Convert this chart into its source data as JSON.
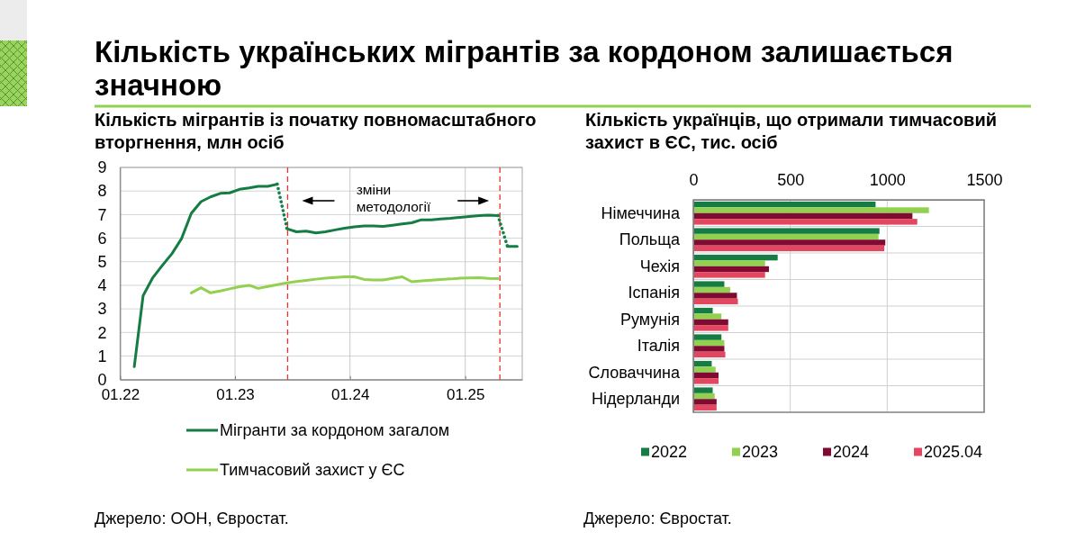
{
  "chart_data": [
    {
      "type": "line",
      "title": "Кількість українських мігрантів за кордоном залишається значною",
      "subtitle": "Кількість мігрантів із початку повномасштабного вторгнення, млн осіб",
      "xlim": [
        "2022-01",
        "2025-07"
      ],
      "xticks": [
        {
          "value": "2022-01",
          "label": "01.22"
        },
        {
          "value": "2023-01",
          "label": "01.23"
        },
        {
          "value": "2024-01",
          "label": "01.24"
        },
        {
          "value": "2025-01",
          "label": "01.25"
        }
      ],
      "ylim": [
        0,
        9
      ],
      "yticks": [
        0,
        1,
        2,
        3,
        4,
        5,
        6,
        7,
        8,
        9
      ],
      "grid": true,
      "legend": "bottom",
      "series": [
        {
          "name": "Мігранти за кордоном загалом",
          "color": "#157d43",
          "x": [
            "2022-02-15",
            "2022-03-15",
            "2022-04-15",
            "2022-05-15",
            "2022-06-15",
            "2022-07-15",
            "2022-08-15",
            "2022-09-15",
            "2022-10-15",
            "2022-11-15",
            "2022-12-15",
            "2023-01-15",
            "2023-02-15",
            "2023-03-15",
            "2023-04-15",
            "2023-05-15",
            "2023-06-01",
            "2023-06-15",
            "2023-07-15",
            "2023-08-15",
            "2023-09-15",
            "2023-10-15",
            "2023-11-15",
            "2023-12-15",
            "2024-01-15",
            "2024-02-15",
            "2024-03-15",
            "2024-04-15",
            "2024-05-15",
            "2024-06-15",
            "2024-07-15",
            "2024-08-15",
            "2024-09-15",
            "2024-10-15",
            "2024-11-15",
            "2024-12-15",
            "2025-01-15",
            "2025-02-15",
            "2025-03-15",
            "2025-04-15",
            "2025-05-01",
            "2025-05-15",
            "2025-06-15"
          ],
          "values": [
            0.55,
            3.56,
            4.33,
            4.84,
            5.35,
            5.98,
            7.05,
            7.55,
            7.75,
            7.9,
            7.92,
            8.07,
            8.13,
            8.2,
            8.2,
            8.29,
            null,
            6.4,
            6.27,
            6.3,
            6.22,
            6.27,
            6.35,
            6.42,
            6.48,
            6.52,
            6.52,
            6.5,
            6.55,
            6.6,
            6.65,
            6.78,
            6.78,
            6.81,
            6.84,
            6.88,
            6.92,
            6.96,
            6.98,
            6.96,
            null,
            5.65,
            5.65
          ]
        },
        {
          "color": "#18804a",
          "line_style": "dotted",
          "x": [
            "2023-05-15",
            "2023-06-15",
            "2024-01-01",
            "2025-04-15",
            "2025-05-15"
          ],
          "values": [
            8.29,
            6.4,
            null,
            6.96,
            5.65
          ]
        },
        {
          "name": "Тимчасовий захист у ЄС",
          "color": "#92d050",
          "x": [
            "2022-08-15",
            "2022-09-15",
            "2022-10-15",
            "2022-11-15",
            "2022-12-15",
            "2023-01-15",
            "2023-02-15",
            "2023-03-15",
            "2023-04-15",
            "2023-05-15",
            "2023-06-15",
            "2023-07-15",
            "2023-08-15",
            "2023-09-15",
            "2023-10-15",
            "2023-11-15",
            "2023-12-15",
            "2024-01-15",
            "2024-02-15",
            "2024-03-15",
            "2024-04-15",
            "2024-05-15",
            "2024-06-15",
            "2024-07-15",
            "2024-08-15",
            "2024-09-15",
            "2024-10-15",
            "2024-11-15",
            "2024-12-15",
            "2025-01-15",
            "2025-02-15",
            "2025-03-15",
            "2025-04-15"
          ],
          "values": [
            3.68,
            3.9,
            3.68,
            3.76,
            3.85,
            3.94,
            4.0,
            3.87,
            3.95,
            4.03,
            4.1,
            4.16,
            4.21,
            4.26,
            4.3,
            4.33,
            4.36,
            4.36,
            4.25,
            4.23,
            4.23,
            4.29,
            4.36,
            4.15,
            4.19,
            4.22,
            4.25,
            4.27,
            4.3,
            4.31,
            4.32,
            4.29,
            4.28
          ]
        }
      ],
      "ref_lines": [
        {
          "axis": "x",
          "value": "2023-06-17",
          "color": "#e8322d",
          "line_style": "dashed"
        },
        {
          "axis": "x",
          "value": "2025-04-21",
          "color": "#e8322d",
          "line_style": "dashed"
        }
      ],
      "annotations": [
        "зміни методології",
        "Джерело: ООН, Євростат."
      ]
    },
    {
      "type": "bar",
      "orientation": "horizontal",
      "title": "Кількість українців, що отримали тимчасовий захист в ЄС, тис. осіб",
      "categories": [
        "Німеччина",
        "Польща",
        "Чехія",
        "Іспанія",
        "Румунія",
        "Італія",
        "Словаччина",
        "Нідерланди"
      ],
      "series": [
        {
          "name": "2022",
          "color": "#157d43",
          "values": [
            940,
            960,
            435,
            160,
            100,
            145,
            95,
            100
          ]
        },
        {
          "name": "2023",
          "color": "#92d050",
          "values": [
            1215,
            955,
            370,
            190,
            145,
            160,
            115,
            110
          ]
        },
        {
          "name": "2024",
          "color": "#7f0a32",
          "values": [
            1130,
            990,
            390,
            225,
            180,
            160,
            130,
            120
          ]
        },
        {
          "name": "2025.04",
          "color": "#e2475f",
          "values": [
            1155,
            985,
            370,
            230,
            180,
            165,
            130,
            120
          ]
        }
      ],
      "xlim": [
        0,
        1500
      ],
      "xticks": [
        0,
        500,
        1000,
        1500
      ],
      "grid": true,
      "legend": "bottom",
      "annotations": [
        "Джерело: Євростат."
      ]
    }
  ]
}
